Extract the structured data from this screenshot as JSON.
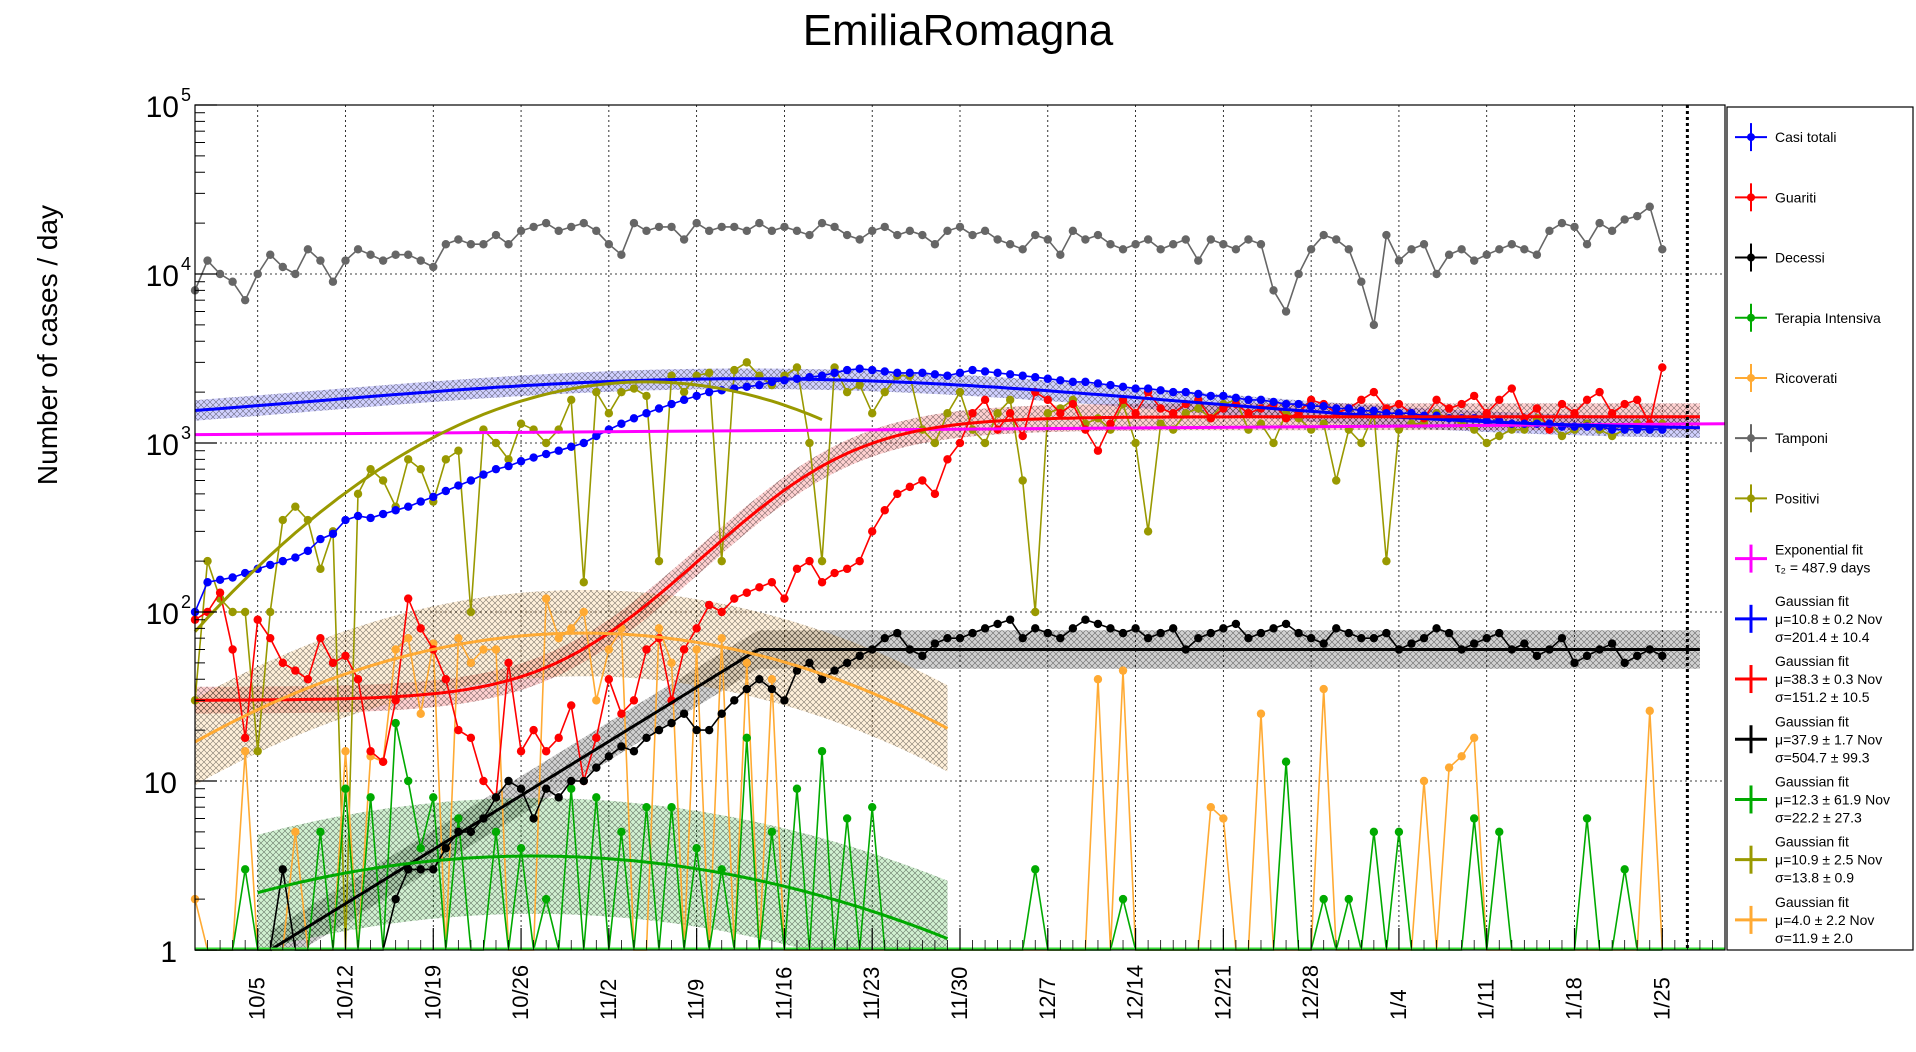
{
  "chart_data": {
    "type": "line",
    "title": "EmiliaRomagna",
    "ylabel": "Number of cases / day",
    "xlabel": "",
    "yscale": "log",
    "ylim": [
      1,
      100000
    ],
    "xlim": [
      0,
      117
    ],
    "y_tick_labels": [
      "1",
      "10",
      "10",
      "10",
      "10",
      "10"
    ],
    "y_tick_exponents": [
      "",
      "",
      "2",
      "3",
      "4",
      "5"
    ],
    "x_ticks": [
      {
        "day": 5,
        "label": "10/5"
      },
      {
        "day": 12,
        "label": "10/12"
      },
      {
        "day": 19,
        "label": "10/19"
      },
      {
        "day": 26,
        "label": "10/26"
      },
      {
        "day": 33,
        "label": "11/2"
      },
      {
        "day": 40,
        "label": "11/9"
      },
      {
        "day": 47,
        "label": "11/16"
      },
      {
        "day": 54,
        "label": "11/23"
      },
      {
        "day": 61,
        "label": "11/30"
      },
      {
        "day": 68,
        "label": "12/7"
      },
      {
        "day": 75,
        "label": "12/14"
      },
      {
        "day": 82,
        "label": "12/21"
      },
      {
        "day": 89,
        "label": "12/28"
      },
      {
        "day": 96,
        "label": "1/4"
      },
      {
        "day": 103,
        "label": "1/11"
      },
      {
        "day": 110,
        "label": "1/18"
      },
      {
        "day": 117,
        "label": "1/25"
      }
    ],
    "x_day_offset_note": "",
    "grid": true,
    "legend_position": "right",
    "series": [
      {
        "name": "Casi totali",
        "color": "#0000ff",
        "values": [
          100,
          150,
          155,
          160,
          170,
          180,
          190,
          200,
          210,
          230,
          270,
          290,
          350,
          370,
          360,
          380,
          400,
          420,
          450,
          480,
          520,
          560,
          600,
          650,
          700,
          730,
          780,
          820,
          860,
          900,
          950,
          1000,
          1100,
          1200,
          1300,
          1400,
          1500,
          1600,
          1700,
          1800,
          1900,
          2000,
          2050,
          2100,
          2150,
          2200,
          2300,
          2350,
          2400,
          2450,
          2500,
          2600,
          2700,
          2750,
          2700,
          2650,
          2600,
          2600,
          2600,
          2550,
          2500,
          2600,
          2700,
          2650,
          2600,
          2550,
          2500,
          2450,
          2400,
          2350,
          2300,
          2300,
          2250,
          2200,
          2150,
          2100,
          2100,
          2050,
          2000,
          2000,
          1950,
          1900,
          1900,
          1850,
          1800,
          1800,
          1750,
          1700,
          1700,
          1650,
          1650,
          1600,
          1600,
          1550,
          1550,
          1500,
          1500,
          1500,
          1450,
          1450,
          1400,
          1400,
          1400,
          1350,
          1350,
          1300,
          1300,
          1300,
          1300,
          1250,
          1250,
          1250,
          1250,
          1200,
          1200,
          1200,
          1200,
          1200
        ]
      },
      {
        "name": "Guariti",
        "color": "#ff0000",
        "values": [
          90,
          100,
          130,
          60,
          18,
          90,
          70,
          50,
          45,
          40,
          70,
          50,
          55,
          40,
          15,
          13,
          30,
          120,
          80,
          60,
          40,
          20,
          18,
          10,
          8,
          50,
          15,
          20,
          15,
          18,
          28,
          10,
          18,
          40,
          25,
          30,
          60,
          70,
          30,
          60,
          80,
          110,
          100,
          120,
          130,
          140,
          150,
          120,
          180,
          200,
          150,
          170,
          180,
          200,
          300,
          400,
          500,
          550,
          600,
          500,
          800,
          1000,
          1500,
          1800,
          1200,
          1500,
          1100,
          2000,
          1800,
          1500,
          1700,
          1200,
          900,
          1300,
          1800,
          1500,
          2000,
          1600,
          1500,
          1700,
          1800,
          1400,
          1600,
          1700,
          1500,
          1600,
          1700,
          1400,
          1500,
          1800,
          1700,
          1500,
          1600,
          1800,
          2000,
          1600,
          1700,
          1500,
          1400,
          1800,
          1600,
          1700,
          1900,
          1500,
          1800,
          2100,
          1400,
          1600,
          1200,
          1700,
          1500,
          1800,
          2000,
          1500,
          1700,
          1800,
          1300,
          2800
        ]
      },
      {
        "name": "Decessi",
        "color": "#000000",
        "values": [
          1,
          1,
          1,
          1,
          1,
          1,
          1,
          3,
          1,
          1,
          1,
          1,
          1,
          1,
          1,
          1,
          2,
          3,
          3,
          3,
          4,
          5,
          5,
          6,
          8,
          10,
          9,
          6,
          9,
          8,
          10,
          10,
          12,
          14,
          16,
          15,
          18,
          20,
          22,
          25,
          20,
          20,
          25,
          30,
          35,
          40,
          35,
          30,
          45,
          50,
          40,
          45,
          50,
          55,
          60,
          70,
          75,
          60,
          55,
          65,
          70,
          70,
          75,
          80,
          85,
          90,
          70,
          80,
          75,
          70,
          80,
          90,
          85,
          80,
          75,
          80,
          70,
          75,
          80,
          60,
          70,
          75,
          80,
          85,
          70,
          75,
          80,
          85,
          75,
          70,
          65,
          80,
          75,
          70,
          70,
          75,
          60,
          65,
          70,
          80,
          75,
          60,
          65,
          70,
          75,
          60,
          65,
          55,
          60,
          70,
          50,
          55,
          60,
          65,
          50,
          55,
          60,
          55
        ]
      },
      {
        "name": "Terapia Intensiva",
        "color": "#00aa00",
        "values": [
          1,
          1,
          1,
          1,
          3,
          1,
          1,
          1,
          1,
          1,
          5,
          1,
          9,
          1,
          8,
          1,
          22,
          10,
          4,
          8,
          1,
          6,
          1,
          1,
          5,
          1,
          4,
          1,
          2,
          1,
          9,
          1,
          8,
          1,
          5,
          1,
          7,
          1,
          7,
          1,
          4,
          1,
          3,
          1,
          18,
          1,
          5,
          1,
          9,
          1,
          15,
          1,
          6,
          1,
          7,
          1,
          1,
          1,
          1,
          1,
          1,
          1,
          1,
          1,
          1,
          1,
          1,
          3,
          1,
          1,
          1,
          1,
          1,
          1,
          2,
          1,
          1,
          1,
          1,
          1,
          1,
          1,
          1,
          1,
          1,
          1,
          1,
          13,
          1,
          1,
          2,
          1,
          2,
          1,
          5,
          1,
          5,
          1,
          1,
          1,
          1,
          1,
          6,
          1,
          5,
          1,
          1,
          1,
          1,
          1,
          1,
          6,
          1,
          1,
          3,
          1,
          1,
          1
        ]
      },
      {
        "name": "Ricoverati",
        "color": "#ffaa33",
        "values": [
          2,
          1,
          1,
          1,
          15,
          1,
          1,
          1,
          5,
          1,
          1,
          1,
          15,
          1,
          14,
          13,
          60,
          70,
          25,
          65,
          1,
          70,
          50,
          60,
          60,
          1,
          1,
          1,
          120,
          70,
          80,
          100,
          30,
          60,
          80,
          1,
          1,
          80,
          50,
          1,
          60,
          1,
          70,
          1,
          50,
          1,
          40,
          1,
          1,
          1,
          1,
          1,
          1,
          1,
          1,
          1,
          1,
          1,
          1,
          1,
          1,
          1,
          1,
          1,
          1,
          1,
          1,
          1,
          1,
          1,
          1,
          1,
          40,
          1,
          45,
          1,
          1,
          1,
          1,
          1,
          1,
          7,
          6,
          1,
          1,
          25,
          1,
          1,
          1,
          1,
          35,
          1,
          1,
          1,
          1,
          1,
          1,
          1,
          10,
          1,
          12,
          14,
          18,
          1,
          1,
          1,
          1,
          1,
          1,
          1,
          1,
          1,
          1,
          1,
          1,
          1,
          26,
          1
        ]
      },
      {
        "name": "Tamponi",
        "color": "#666666",
        "values": [
          8000,
          12000,
          10000,
          9000,
          7000,
          10000,
          13000,
          11000,
          10000,
          14000,
          12000,
          9000,
          12000,
          14000,
          13000,
          12000,
          13000,
          13000,
          12000,
          11000,
          15000,
          16000,
          15000,
          15000,
          17000,
          15000,
          18000,
          19000,
          20000,
          18000,
          19000,
          20000,
          18000,
          15000,
          13000,
          20000,
          18000,
          19000,
          19000,
          16000,
          20000,
          18000,
          19000,
          19000,
          18000,
          20000,
          18000,
          19000,
          18000,
          17000,
          20000,
          19000,
          17000,
          16000,
          18000,
          19000,
          17000,
          18000,
          17000,
          15000,
          18000,
          19000,
          17000,
          18000,
          16000,
          15000,
          14000,
          17000,
          16000,
          13000,
          18000,
          16000,
          17000,
          15000,
          14000,
          15000,
          16000,
          14000,
          15000,
          16000,
          12000,
          16000,
          15000,
          14000,
          16000,
          15000,
          8000,
          6000,
          10000,
          14000,
          17000,
          16000,
          14000,
          9000,
          5000,
          17000,
          12000,
          14000,
          15000,
          10000,
          13000,
          14000,
          12000,
          13000,
          14000,
          15000,
          14000,
          13000,
          18000,
          20000,
          19000,
          15000,
          20000,
          18000,
          21000,
          22000,
          25000,
          14000
        ]
      },
      {
        "name": "Positivi",
        "color": "#999900",
        "values": [
          30,
          200,
          120,
          100,
          100,
          15,
          100,
          350,
          420,
          350,
          180,
          300,
          1,
          500,
          700,
          600,
          420,
          800,
          700,
          450,
          800,
          900,
          100,
          1200,
          1000,
          800,
          1300,
          1200,
          1000,
          1200,
          1800,
          150,
          2000,
          1500,
          2000,
          2100,
          1900,
          200,
          2500,
          2000,
          2500,
          2600,
          200,
          2700,
          3000,
          2500,
          2200,
          2500,
          2800,
          1000,
          200,
          2800,
          2000,
          2200,
          1500,
          2000,
          2500,
          2500,
          1200,
          1000,
          1500,
          2000,
          1200,
          1000,
          1500,
          1800,
          600,
          100,
          1500,
          1600,
          1800,
          1300,
          1400,
          1200,
          1700,
          1000,
          300,
          1300,
          1200,
          1500,
          1600,
          1400,
          1700,
          1800,
          1200,
          1300,
          1000,
          1500,
          1400,
          1200,
          1300,
          600,
          1200,
          1000,
          1500,
          200,
          1200,
          1300,
          1300,
          1500,
          1400,
          1300,
          1200,
          1000,
          1100,
          1200,
          1200,
          1400,
          1300,
          1100,
          1200,
          1300,
          1200,
          1100,
          1200,
          1300,
          1200,
          1300
        ]
      }
    ],
    "fits": [
      {
        "name": "Exponential fit",
        "color": "#ff00ff",
        "params": "τ₂ = 487.9 days"
      },
      {
        "name": "Gaussian fit",
        "color": "#0000ff",
        "params": "μ=10.8 ± 0.2 Nov",
        "params2": "σ=201.4 ± 10.4"
      },
      {
        "name": "Gaussian fit",
        "color": "#ff0000",
        "params": "μ=38.3 ± 0.3 Nov",
        "params2": "σ=151.2 ± 10.5"
      },
      {
        "name": "Gaussian fit",
        "color": "#000000",
        "params": "μ=37.9 ± 1.7 Nov",
        "params2": "σ=504.7 ± 99.3"
      },
      {
        "name": "Gaussian fit",
        "color": "#00aa00",
        "params": "μ=12.3 ± 61.9 Nov",
        "params2": "σ=22.2 ± 27.3"
      },
      {
        "name": "Gaussian fit",
        "color": "#999900",
        "params": "μ=10.9 ± 2.5 Nov",
        "params2": "σ=13.8 ± 0.9"
      },
      {
        "name": "Gaussian fit",
        "color": "#ffaa33",
        "params": "μ=4.0 ± 2.2 Nov",
        "params2": "σ=11.9 ± 2.0"
      }
    ]
  }
}
